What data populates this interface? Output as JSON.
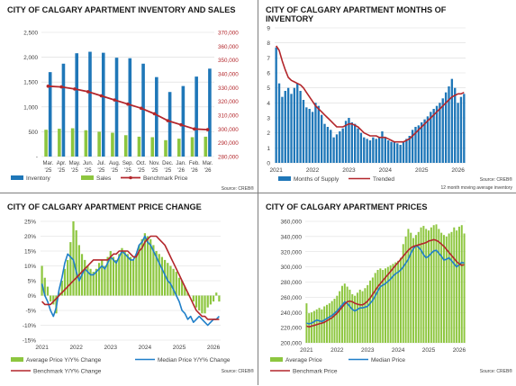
{
  "colors": {
    "bar_blue": "#1f77b8",
    "bar_green": "#8dc63f",
    "line_red": "#b3262b",
    "line_blue": "#1f7fc9",
    "grid": "#d9d9d9",
    "axis_text": "#404040",
    "right_axis_red": "#b3262b"
  },
  "chart_data": [
    {
      "type": "bar",
      "title": "CITY OF CALGARY APARTMENT INVENTORY AND SALES",
      "categories": [
        "Mar. '25",
        "Apr. '25",
        "May. '25",
        "Jun. '25",
        "Jul. '25",
        "Aug. '25",
        "Sep. '25",
        "Oct. '25",
        "Nov. '25",
        "Dec. '25",
        "Jan. '26",
        "Feb. '26",
        "Mar. '26"
      ],
      "category_lines": [
        [
          "Mar.",
          "'25"
        ],
        [
          "Apr.",
          "'25"
        ],
        [
          "May.",
          "'25"
        ],
        [
          "Jun.",
          "'25"
        ],
        [
          "Jul.",
          "'25"
        ],
        [
          "Aug.",
          "'25"
        ],
        [
          "Sep.",
          "'25"
        ],
        [
          "Oct.",
          "'25"
        ],
        [
          "Nov.",
          "'25"
        ],
        [
          "Dec.",
          "'25"
        ],
        [
          "Jan.",
          "'26"
        ],
        [
          "Feb.",
          "'26"
        ],
        [
          "Mar.",
          "'26"
        ]
      ],
      "series": [
        {
          "name": "Inventory",
          "kind": "bar",
          "axis": "left",
          "values": [
            1700,
            1870,
            2080,
            2110,
            2090,
            1990,
            1980,
            1870,
            1600,
            1300,
            1420,
            1610,
            1770
          ]
        },
        {
          "name": "Sales",
          "kind": "bar",
          "axis": "left",
          "values": [
            540,
            560,
            570,
            530,
            500,
            480,
            430,
            400,
            390,
            330,
            360,
            390,
            400
          ]
        },
        {
          "name": "Benchmark Price",
          "kind": "line",
          "axis": "right",
          "values": [
            331000,
            330500,
            329000,
            327000,
            324000,
            321000,
            318000,
            315000,
            311000,
            306000,
            303000,
            300000,
            299500
          ]
        }
      ],
      "ylim_left": [
        0,
        2500
      ],
      "yticks_left": [
        0,
        500,
        1000,
        1500,
        2000,
        2500
      ],
      "ytick_labels_left": [
        "-",
        "500",
        "1,000",
        "1,500",
        "2,000",
        "2,500"
      ],
      "ylim_right": [
        280000,
        370000
      ],
      "yticks_right": [
        280000,
        290000,
        300000,
        310000,
        320000,
        330000,
        340000,
        350000,
        360000,
        370000
      ],
      "ytick_labels_right": [
        "280,000",
        "290,000",
        "300,000",
        "310,000",
        "320,000",
        "330,000",
        "340,000",
        "350,000",
        "360,000",
        "370,000"
      ],
      "legend": [
        "Inventory",
        "Sales",
        "Benchmark Price"
      ],
      "source": "Source: CREB®"
    },
    {
      "type": "bar",
      "title": "CITY OF CALGARY APARTMENT MONTHS OF INVENTORY",
      "title_lines": [
        "CITY OF CALGARY APARTMENT MONTHS OF",
        "INVENTORY"
      ],
      "x_start": "2021-01",
      "x_end": "2026-03",
      "xtick_labels": [
        "2021",
        "2022",
        "2023",
        "2024",
        "2025",
        "2026"
      ],
      "series": [
        {
          "name": "Months of Supply",
          "kind": "bar",
          "values": [
            7.7,
            5.3,
            4.4,
            4.8,
            5.0,
            4.6,
            5.0,
            5.3,
            4.8,
            4.2,
            3.7,
            3.6,
            3.4,
            4.0,
            3.8,
            3.2,
            2.6,
            2.4,
            2.2,
            1.7,
            1.9,
            2.1,
            2.3,
            2.8,
            3.0,
            2.7,
            2.6,
            2.3,
            2.0,
            1.7,
            1.6,
            1.5,
            1.7,
            1.6,
            1.7,
            2.1,
            1.7,
            1.5,
            1.4,
            1.4,
            1.3,
            1.2,
            1.4,
            1.6,
            1.8,
            2.2,
            2.4,
            2.5,
            2.7,
            2.9,
            3.1,
            3.4,
            3.6,
            3.8,
            4.0,
            4.3,
            4.7,
            5.1,
            5.6,
            5.0,
            4.0,
            4.4,
            4.6
          ]
        },
        {
          "name": "Trended",
          "kind": "line",
          "values": [
            7.8,
            7.5,
            6.8,
            6.2,
            5.7,
            5.5,
            5.4,
            5.3,
            5.2,
            5.0,
            4.7,
            4.4,
            4.1,
            3.8,
            3.6,
            3.4,
            3.2,
            3.0,
            2.8,
            2.6,
            2.4,
            2.4,
            2.4,
            2.5,
            2.6,
            2.6,
            2.5,
            2.4,
            2.2,
            2.0,
            1.9,
            1.8,
            1.8,
            1.8,
            1.7,
            1.7,
            1.7,
            1.6,
            1.5,
            1.4,
            1.4,
            1.4,
            1.4,
            1.5,
            1.6,
            1.8,
            2.0,
            2.2,
            2.4,
            2.6,
            2.8,
            3.0,
            3.2,
            3.4,
            3.6,
            3.8,
            4.0,
            4.2,
            4.4,
            4.5,
            4.6,
            4.6,
            4.7
          ]
        }
      ],
      "ylim": [
        0,
        9
      ],
      "yticks": [
        0,
        1,
        2,
        3,
        4,
        5,
        6,
        7,
        8,
        9
      ],
      "legend": [
        "Months of Supply",
        "Trended"
      ],
      "footnote": "12 month moving average inventory",
      "source": "Source: CREB®"
    },
    {
      "type": "bar",
      "title": "CITY OF CALGARY APARTMENT PRICE CHANGE",
      "x_start": "2021-01",
      "x_end": "2026-03",
      "xtick_labels": [
        "2021",
        "2022",
        "2023",
        "2024",
        "2025",
        "2026"
      ],
      "series": [
        {
          "name": "Average Price Y/Y% Change",
          "kind": "bar",
          "values": [
            10,
            6,
            3,
            -2,
            -3,
            -6,
            1,
            5,
            9,
            12,
            18,
            25,
            22,
            17,
            14,
            12,
            10,
            9,
            8,
            9,
            11,
            12,
            10,
            13,
            15,
            13,
            12,
            14,
            16,
            15,
            14,
            13,
            12,
            14,
            17,
            19,
            21,
            20,
            19,
            17,
            15,
            14,
            13,
            12,
            11,
            10,
            9,
            8,
            6,
            5,
            3,
            1,
            0,
            -2,
            -4,
            -5,
            -6,
            -6,
            -4,
            -3,
            -2,
            1,
            -2
          ]
        },
        {
          "name": "Median Price Y/Y% Change",
          "kind": "line",
          "values": [
            4,
            0,
            -2,
            -5,
            -7,
            -4,
            2,
            6,
            11,
            14,
            13,
            12,
            8,
            5,
            7,
            9,
            8,
            7,
            7,
            8,
            9,
            10,
            9,
            11,
            13,
            12,
            11,
            13,
            15,
            14,
            13,
            12,
            12,
            14,
            17,
            18,
            20,
            18,
            17,
            15,
            13,
            11,
            9,
            7,
            5,
            4,
            2,
            0,
            -2,
            -5,
            -6,
            -8,
            -7,
            -9,
            -8,
            -7,
            -8,
            -9,
            -10,
            -9,
            -8,
            -8,
            -7
          ]
        },
        {
          "name": "Benchmark Y/Y% Change",
          "kind": "line",
          "values": [
            -2,
            -3,
            -3,
            -3,
            -2,
            -1,
            0,
            1,
            2,
            3,
            4,
            5,
            6,
            7,
            8,
            9,
            10,
            11,
            12,
            12,
            12,
            12,
            12,
            12,
            13,
            14,
            14,
            15,
            15,
            15,
            15,
            14,
            13,
            13,
            15,
            16,
            18,
            19,
            20,
            20,
            20,
            19,
            18,
            17,
            15,
            13,
            11,
            9,
            7,
            5,
            3,
            1,
            -1,
            -3,
            -5,
            -6,
            -7,
            -7,
            -8,
            -8,
            -8,
            -8,
            -8
          ]
        }
      ],
      "ylim": [
        -15,
        25
      ],
      "yticks": [
        -15,
        -10,
        -5,
        0,
        5,
        10,
        15,
        20,
        25
      ],
      "ytick_labels": [
        "-15%",
        "-10%",
        "-5%",
        "0%",
        "5%",
        "10%",
        "15%",
        "20%",
        "25%"
      ],
      "legend": [
        "Average Price Y/Y% Change",
        "Median Price Y/Y% Change",
        "Benchmark Y/Y% Change"
      ],
      "source": "Source: CREB®"
    },
    {
      "type": "bar",
      "title": "CITY OF CALGARY APARTMENT PRICES",
      "x_start": "2021-01",
      "x_end": "2026-03",
      "xtick_labels": [
        "2021",
        "2022",
        "2023",
        "2024",
        "2025",
        "2026"
      ],
      "series": [
        {
          "name": "Average Price",
          "kind": "bar",
          "values": [
            252000,
            239000,
            240000,
            242000,
            244000,
            246000,
            244000,
            248000,
            250000,
            252000,
            255000,
            258000,
            262000,
            268000,
            275000,
            278000,
            274000,
            270000,
            264000,
            262000,
            266000,
            270000,
            268000,
            272000,
            276000,
            282000,
            286000,
            292000,
            296000,
            298000,
            296000,
            298000,
            300000,
            302000,
            304000,
            306000,
            308000,
            312000,
            330000,
            340000,
            350000,
            345000,
            338000,
            342000,
            346000,
            352000,
            354000,
            350000,
            348000,
            352000,
            355000,
            356000,
            350000,
            345000,
            342000,
            340000,
            344000,
            346000,
            352000,
            348000,
            353000,
            355000,
            344000
          ]
        },
        {
          "name": "Median Price",
          "kind": "line",
          "values": [
            226000,
            225000,
            226000,
            228000,
            230000,
            229000,
            228000,
            230000,
            232000,
            234000,
            236000,
            239000,
            242000,
            246000,
            250000,
            254000,
            252000,
            248000,
            244000,
            242000,
            244000,
            246000,
            246000,
            247000,
            248000,
            252000,
            256000,
            262000,
            268000,
            274000,
            276000,
            278000,
            281000,
            284000,
            288000,
            291000,
            293000,
            296000,
            300000,
            305000,
            310000,
            318000,
            324000,
            328000,
            326000,
            322000,
            316000,
            312000,
            314000,
            318000,
            321000,
            322000,
            318000,
            314000,
            309000,
            310000,
            312000,
            308000,
            304000,
            300000,
            303000,
            306000,
            305000
          ]
        },
        {
          "name": "Benchmark Price",
          "kind": "line",
          "values": [
            222000,
            221000,
            222000,
            223000,
            224000,
            225000,
            226000,
            227000,
            229000,
            231000,
            233000,
            236000,
            239000,
            243000,
            247000,
            251000,
            254000,
            255000,
            254000,
            252000,
            251000,
            250000,
            250000,
            252000,
            255000,
            259000,
            264000,
            269000,
            274000,
            278000,
            282000,
            286000,
            290000,
            294000,
            298000,
            302000,
            306000,
            310000,
            314000,
            318000,
            322000,
            325000,
            327000,
            328000,
            329000,
            330000,
            331000,
            332000,
            334000,
            335000,
            336000,
            335000,
            333000,
            330000,
            327000,
            323000,
            319000,
            315000,
            311000,
            307000,
            304000,
            302000,
            303000
          ]
        }
      ],
      "ylim": [
        200000,
        360000
      ],
      "yticks": [
        200000,
        220000,
        240000,
        260000,
        280000,
        300000,
        320000,
        340000,
        360000
      ],
      "ytick_labels": [
        "200,000",
        "220,000",
        "240,000",
        "260,000",
        "280,000",
        "300,000",
        "320,000",
        "340,000",
        "360,000"
      ],
      "legend": [
        "Average Price",
        "Median Price",
        "Benchmark Price"
      ],
      "source": "Source: CREB®"
    }
  ]
}
